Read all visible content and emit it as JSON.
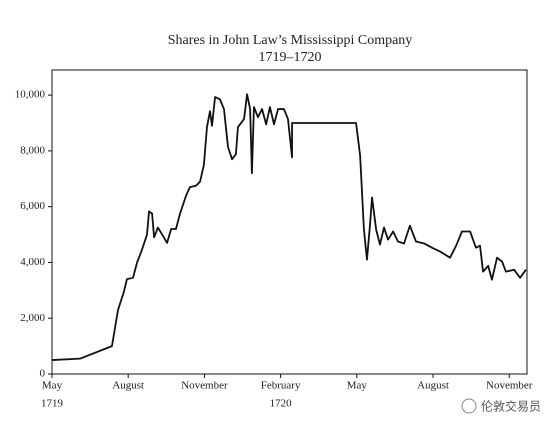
{
  "chart_data": {
    "type": "line",
    "title": "Shares in John Law’s Mississippi Company",
    "subtitle": "1719–1720",
    "x": [
      0,
      1.1,
      2.36,
      2.6,
      2.83,
      2.95,
      3.19,
      3.35,
      3.54,
      3.74,
      3.82,
      3.94,
      4.02,
      4.17,
      4.37,
      4.53,
      4.69,
      4.88,
      5.04,
      5.28,
      5.43,
      5.67,
      5.83,
      5.98,
      6.1,
      6.22,
      6.3,
      6.42,
      6.61,
      6.77,
      6.93,
      7.09,
      7.24,
      7.32,
      7.56,
      7.68,
      7.8,
      7.87,
      7.95,
      8.11,
      8.27,
      8.43,
      8.58,
      8.74,
      8.9,
      9.13,
      9.29,
      9.45,
      9.45,
      11.97,
      12.13,
      12.28,
      12.4,
      12.52,
      12.6,
      12.76,
      12.91,
      13.07,
      13.23,
      13.43,
      13.62,
      13.86,
      14.09,
      14.33,
      14.65,
      14.96,
      15.28,
      15.67,
      15.91,
      16.14,
      16.46,
      16.69,
      16.85,
      16.97,
      17.17,
      17.32,
      17.52,
      17.72,
      17.87,
      18.19,
      18.43,
      18.66
    ],
    "series": [
      {
        "color": "#111111",
        "values": [
          500,
          550,
          1000,
          2300,
          2950,
          3400,
          3450,
          4000,
          4450,
          5000,
          5830,
          5750,
          4900,
          5250,
          4950,
          4700,
          5200,
          5200,
          5750,
          6400,
          6700,
          6750,
          6900,
          7500,
          8850,
          9420,
          8900,
          9930,
          9850,
          9500,
          8130,
          7700,
          7880,
          8850,
          9140,
          10030,
          9500,
          7200,
          9570,
          9210,
          9500,
          8950,
          9570,
          8950,
          9500,
          9500,
          9140,
          7770,
          9000,
          9000,
          7840,
          5180,
          4100,
          5360,
          6330,
          5180,
          4640,
          5250,
          4820,
          5110,
          4750,
          4680,
          5320,
          4750,
          4680,
          4530,
          4390,
          4170,
          4600,
          5110,
          5110,
          4530,
          4600,
          3670,
          3880,
          3380,
          4170,
          4030,
          3670,
          3740,
          3450,
          3740
        ]
      }
    ],
    "xlim": [
      0,
      18.7
    ],
    "xticks": [
      {
        "value": 0,
        "label": "May"
      },
      {
        "value": 3,
        "label": "August"
      },
      {
        "value": 6,
        "label": "November"
      },
      {
        "value": 9,
        "label": "February"
      },
      {
        "value": 12,
        "label": "May"
      },
      {
        "value": 15,
        "label": "August"
      },
      {
        "value": 18,
        "label": "November"
      }
    ],
    "x_year_labels": [
      {
        "value": 0,
        "label": "1719"
      },
      {
        "value": 9,
        "label": "1720"
      }
    ],
    "ylim": [
      0,
      10900
    ],
    "yticks": [
      0,
      {
        "value": 2000,
        "label": "2,000"
      },
      {
        "value": 4000,
        "label": "4,000"
      },
      {
        "value": 6000,
        "label": "6,000"
      },
      {
        "value": 8000,
        "label": "8,000"
      },
      {
        "value": 10000,
        "label": "10,000"
      }
    ],
    "grid": false
  },
  "watermark": "伦敦交易员"
}
